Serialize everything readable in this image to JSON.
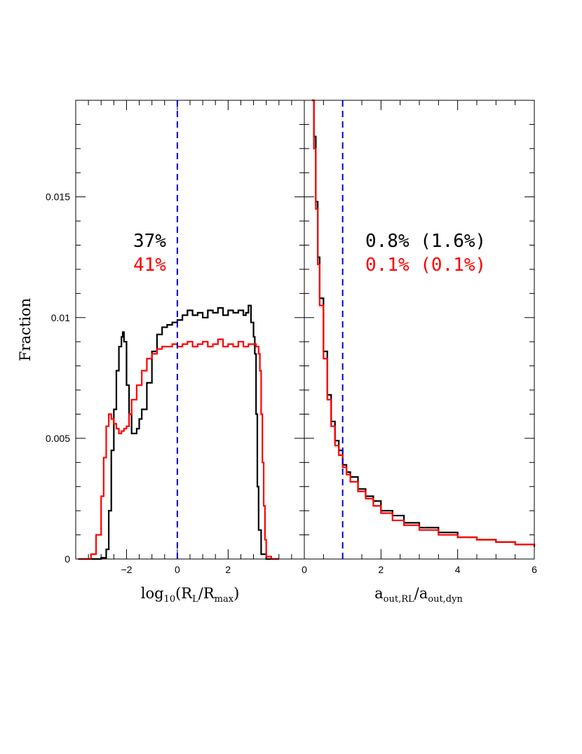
{
  "colors": {
    "series_black": "#000000",
    "series_red": "#ff0000",
    "reference_line": "#0000cc",
    "ylabel": "#777777"
  },
  "chart_data": [
    {
      "type": "line",
      "panel": "left",
      "xlabel": "log10(RL/Rmax)",
      "xlabel_parts": {
        "main": "log",
        "sub1": "10",
        "open": "(R",
        "sub2": "L",
        "mid": "/R",
        "sub3": "max",
        "close": ")"
      },
      "ylabel": "Fraction",
      "xlim": [
        -4,
        5
      ],
      "ylim": [
        0,
        0.019
      ],
      "xticks": [
        -2,
        0,
        2
      ],
      "xtick_labels": [
        "−2",
        "0",
        "2"
      ],
      "yticks": [
        0,
        0.005,
        0.01,
        0.015
      ],
      "ytick_labels": [
        "0",
        "0.005",
        "0.01",
        "0.015"
      ],
      "grid": false,
      "reference_line": {
        "x": 0,
        "style": "dashed"
      },
      "annotations": [
        {
          "text": "37%",
          "color": "#000000"
        },
        {
          "text": "41%",
          "color": "#ff0000"
        }
      ],
      "series": [
        {
          "color": "#000000",
          "x": [
            -3.9,
            -3.3,
            -3.0,
            -2.8,
            -2.7,
            -2.6,
            -2.5,
            -2.4,
            -2.3,
            -2.2,
            -2.15,
            -2.1,
            -2.0,
            -1.9,
            -1.8,
            -1.7,
            -1.6,
            -1.5,
            -1.4,
            -1.2,
            -1.0,
            -0.8,
            -0.6,
            -0.4,
            -0.2,
            0.0,
            0.2,
            0.4,
            0.6,
            0.8,
            1.0,
            1.2,
            1.4,
            1.6,
            1.8,
            2.0,
            2.2,
            2.4,
            2.6,
            2.7,
            2.8,
            2.9,
            3.0,
            3.05,
            3.1,
            3.15,
            3.2,
            3.3,
            3.5,
            4.0
          ],
          "y": [
            0,
            0,
            5e-05,
            0.0004,
            0.002,
            0.0045,
            0.0062,
            0.0078,
            0.0088,
            0.0092,
            0.0094,
            0.009,
            0.0072,
            0.006,
            0.0052,
            0.0052,
            0.0054,
            0.0058,
            0.0062,
            0.0073,
            0.0086,
            0.0093,
            0.0096,
            0.0097,
            0.0098,
            0.0099,
            0.0101,
            0.0103,
            0.0101,
            0.0102,
            0.01,
            0.0103,
            0.0102,
            0.0104,
            0.0101,
            0.0103,
            0.0102,
            0.0103,
            0.0101,
            0.0102,
            0.0105,
            0.0098,
            0.0092,
            0.0085,
            0.006,
            0.003,
            0.0012,
            0.0002,
            0,
            0
          ]
        },
        {
          "color": "#ff0000",
          "x": [
            -3.9,
            -3.5,
            -3.4,
            -3.2,
            -3.0,
            -2.9,
            -2.8,
            -2.7,
            -2.6,
            -2.5,
            -2.4,
            -2.3,
            -2.2,
            -2.1,
            -2.0,
            -1.9,
            -1.8,
            -1.6,
            -1.4,
            -1.2,
            -1.0,
            -0.8,
            -0.6,
            -0.4,
            -0.2,
            0.0,
            0.2,
            0.4,
            0.6,
            0.8,
            1.0,
            1.2,
            1.4,
            1.6,
            1.8,
            2.0,
            2.2,
            2.4,
            2.6,
            2.8,
            3.0,
            3.1,
            3.2,
            3.25,
            3.3,
            3.35,
            3.4,
            3.45,
            3.5,
            3.7,
            4.0
          ],
          "y": [
            0,
            0,
            0.0002,
            0.001,
            0.0026,
            0.0042,
            0.0055,
            0.006,
            0.0058,
            0.0056,
            0.0054,
            0.0052,
            0.0053,
            0.0054,
            0.0055,
            0.006,
            0.0066,
            0.0072,
            0.0078,
            0.0083,
            0.0085,
            0.0087,
            0.0088,
            0.0088,
            0.0089,
            0.0088,
            0.0089,
            0.009,
            0.0088,
            0.0089,
            0.009,
            0.0088,
            0.0089,
            0.0091,
            0.0088,
            0.0089,
            0.0088,
            0.009,
            0.0088,
            0.0089,
            0.0089,
            0.0088,
            0.0085,
            0.0078,
            0.006,
            0.004,
            0.0022,
            0.0008,
            0.0001,
            0,
            0
          ]
        }
      ]
    },
    {
      "type": "line",
      "panel": "right",
      "xlabel": "aout,RL/aout,dyn",
      "xlabel_parts": {
        "main1": "a",
        "sub1": "out,RL",
        "mid": "/a",
        "sub2": "out,dyn"
      },
      "xlim": [
        0,
        6
      ],
      "ylim": [
        0,
        0.019
      ],
      "xticks": [
        0,
        2,
        4,
        6
      ],
      "xtick_labels": [
        "0",
        "2",
        "4",
        "6"
      ],
      "grid": false,
      "reference_line": {
        "x": 1,
        "style": "dashed"
      },
      "annotations": [
        {
          "text": "0.8% (1.6%)",
          "color": "#000000"
        },
        {
          "text": "0.1% (0.1%)",
          "color": "#ff0000"
        }
      ],
      "series": [
        {
          "color": "#000000",
          "x": [
            0.2,
            0.25,
            0.3,
            0.35,
            0.4,
            0.5,
            0.6,
            0.7,
            0.8,
            0.9,
            1.0,
            1.1,
            1.2,
            1.4,
            1.6,
            1.8,
            2.0,
            2.3,
            2.6,
            3.0,
            3.5,
            4.0,
            4.5,
            5.0,
            5.5,
            6.0
          ],
          "y": [
            0.019,
            0.0175,
            0.0148,
            0.0125,
            0.0108,
            0.0086,
            0.0068,
            0.0057,
            0.0049,
            0.0045,
            0.0039,
            0.0036,
            0.0034,
            0.0029,
            0.0026,
            0.0024,
            0.002,
            0.0018,
            0.0015,
            0.0013,
            0.0011,
            0.0009,
            0.0008,
            0.0007,
            0.0006,
            0.0005
          ]
        },
        {
          "color": "#ff0000",
          "x": [
            0.2,
            0.25,
            0.3,
            0.35,
            0.4,
            0.5,
            0.6,
            0.7,
            0.8,
            0.9,
            1.0,
            1.1,
            1.2,
            1.4,
            1.6,
            1.8,
            2.0,
            2.3,
            2.6,
            3.0,
            3.5,
            4.0,
            4.5,
            5.0,
            5.5,
            6.0
          ],
          "y": [
            0.019,
            0.017,
            0.0145,
            0.0122,
            0.0105,
            0.0083,
            0.0066,
            0.0055,
            0.0047,
            0.0043,
            0.0038,
            0.0035,
            0.0032,
            0.0028,
            0.0025,
            0.0022,
            0.0019,
            0.0016,
            0.0014,
            0.0012,
            0.001,
            0.0009,
            0.0008,
            0.0007,
            0.0006,
            0.0005
          ]
        }
      ]
    }
  ]
}
